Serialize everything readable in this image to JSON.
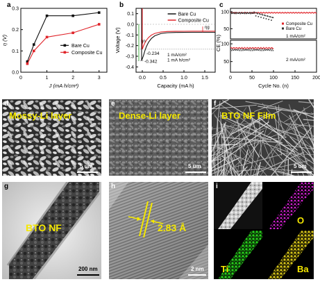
{
  "panel_labels": [
    "a",
    "b",
    "c",
    "d",
    "e",
    "f",
    "g",
    "h",
    "i"
  ],
  "colors": {
    "bare": "#111111",
    "composite": "#e0242a",
    "overlay_text": "#f5e800",
    "scale": "#ffffff",
    "ti": "#26d11b",
    "o": "#d31fd1",
    "ba": "#d4c31a"
  },
  "chart_data": [
    {
      "type": "line",
      "xlabel": "J (mA h/cm²)",
      "ylabel": "η (V)",
      "xlim": [
        0,
        3.3
      ],
      "ylim": [
        0,
        0.3
      ],
      "xticks": [
        "0",
        "1",
        "2",
        "3"
      ],
      "yticks": [
        "0.0",
        "0.1",
        "0.2",
        "0.3"
      ],
      "legend_position": "center-right",
      "series": [
        {
          "name": "Bare Cu",
          "color": "#111111",
          "x": [
            0.25,
            0.5,
            1,
            2,
            3
          ],
          "y": [
            0.05,
            0.13,
            0.265,
            0.265,
            0.28
          ]
        },
        {
          "name": "Composite Cu",
          "color": "#e0242a",
          "x": [
            0.25,
            0.5,
            1,
            2,
            3
          ],
          "y": [
            0.04,
            0.1,
            0.165,
            0.185,
            0.225
          ]
        }
      ]
    },
    {
      "type": "line",
      "xlabel": "Capacity (mA h)",
      "ylabel": "Voltage (V)",
      "xlim": [
        -0.15,
        1.75
      ],
      "ylim": [
        -0.45,
        0.15
      ],
      "xticks": [
        "0.0",
        "0.5",
        "1.0",
        "1.5"
      ],
      "yticks": [
        "-0.4",
        "-0.3",
        "-0.2",
        "-0.1",
        "0.0",
        "0.1"
      ],
      "legend_position": "top-right",
      "annotations": [
        "-0.234",
        "-0.342",
        "ηn",
        "ηg",
        "1 mA/cm²",
        "1 mA h/cm²"
      ],
      "series": [
        {
          "name": "Bare Cu",
          "color": "#111111"
        },
        {
          "name": "Composite Cu",
          "color": "#e0242a"
        }
      ]
    },
    {
      "type": "scatter",
      "xlabel": "Cycle No. (n)",
      "ylabel": "CE (%)",
      "xlim": [
        0,
        200
      ],
      "xticks": [
        "0",
        "50",
        "100",
        "150",
        "200"
      ],
      "yticks_top": [
        "50",
        "100"
      ],
      "yticks_bottom": [
        "50",
        "100"
      ],
      "legend_position": "right",
      "annotations": [
        "1 mA/cm²",
        "2 mA/cm²"
      ],
      "series": [
        {
          "name": "Composite Cu",
          "color": "#e0242a"
        },
        {
          "name": "Bare Cu",
          "color": "#111111"
        }
      ]
    }
  ],
  "micrographs": {
    "d": {
      "overlay": "Mossy-Li layer",
      "scale": "5 um"
    },
    "e": {
      "overlay": "Dense-Li layer",
      "scale": "5 um"
    },
    "f": {
      "overlay": "BTO NF Film",
      "scale": "5 um"
    },
    "g": {
      "overlay": "BTO NF",
      "scale": "200 nm"
    },
    "h": {
      "overlay": "2.83 Å",
      "scale": "2 nm"
    },
    "i": {
      "labels": [
        "O",
        "Ti",
        "Ba"
      ]
    }
  }
}
